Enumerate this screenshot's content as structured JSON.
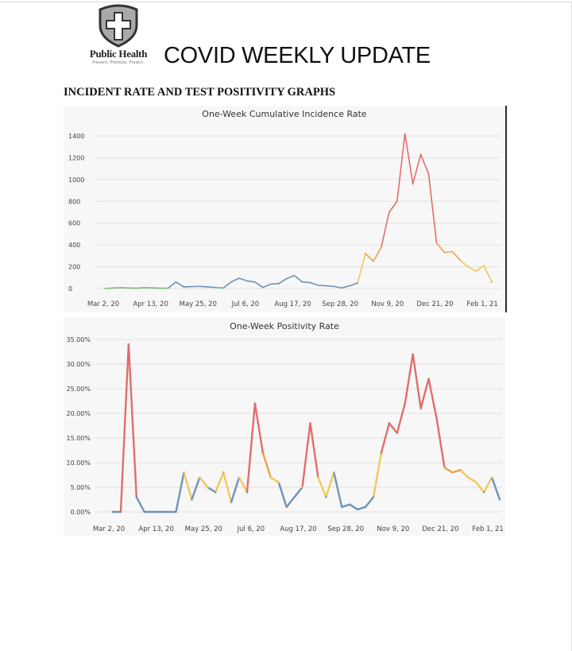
{
  "header": {
    "logo_text": "Public Health",
    "logo_tagline": "Prevent. Promote. Protect.",
    "title": "COVID WEEKLY UPDATE"
  },
  "section_heading": "INCIDENT RATE AND TEST POSITIVITY GRAPHS",
  "colors": {
    "green": "#7fb77e",
    "blue": "#6f93b8",
    "yellow": "#f2c85b",
    "orange": "#f0a145",
    "red": "#e26d6d"
  },
  "chart_data": [
    {
      "type": "line",
      "title": "One-Week Cumulative Incidence Rate",
      "xlabel": "",
      "ylabel": "",
      "ylim": [
        0,
        1400
      ],
      "yticks": [
        "0",
        "200",
        "400",
        "600",
        "800",
        "1000",
        "1200",
        "1400"
      ],
      "xticks": [
        "Mar 2, 20",
        "Apr 13, 20",
        "May 25, 20",
        "Jul 6, 20",
        "Aug 17, 20",
        "Sep 28, 20",
        "Nov 9, 20",
        "Dec 21, 20",
        "Feb 1, 21"
      ],
      "grid": true,
      "x": [
        "2020-03-02",
        "2020-03-09",
        "2020-03-16",
        "2020-03-23",
        "2020-03-30",
        "2020-04-06",
        "2020-04-13",
        "2020-04-20",
        "2020-04-27",
        "2020-05-04",
        "2020-05-11",
        "2020-05-18",
        "2020-05-25",
        "2020-06-01",
        "2020-06-08",
        "2020-06-15",
        "2020-06-22",
        "2020-06-29",
        "2020-07-06",
        "2020-07-13",
        "2020-07-20",
        "2020-07-27",
        "2020-08-03",
        "2020-08-10",
        "2020-08-17",
        "2020-08-24",
        "2020-08-31",
        "2020-09-07",
        "2020-09-14",
        "2020-09-21",
        "2020-09-28",
        "2020-10-05",
        "2020-10-12",
        "2020-10-19",
        "2020-10-26",
        "2020-11-02",
        "2020-11-09",
        "2020-11-16",
        "2020-11-23",
        "2020-11-30",
        "2020-12-07",
        "2020-12-14",
        "2020-12-21",
        "2020-12-28",
        "2021-01-04",
        "2021-01-11",
        "2021-01-18",
        "2021-01-25",
        "2021-02-01",
        "2021-02-08"
      ],
      "values": [
        0,
        5,
        8,
        5,
        3,
        8,
        6,
        3,
        3,
        60,
        15,
        18,
        20,
        15,
        10,
        5,
        60,
        95,
        70,
        60,
        10,
        40,
        45,
        90,
        120,
        60,
        55,
        30,
        25,
        20,
        5,
        25,
        50,
        320,
        250,
        380,
        700,
        800,
        1420,
        960,
        1230,
        1050,
        420,
        330,
        340,
        260,
        200,
        160,
        210,
        60
      ]
    },
    {
      "type": "line",
      "title": "One-Week Positivity Rate",
      "xlabel": "",
      "ylabel": "",
      "ylim": [
        0,
        35
      ],
      "yticks": [
        "0.00%",
        "5.00%",
        "10.00%",
        "15.00%",
        "20.00%",
        "25.00%",
        "30.00%",
        "35.00%"
      ],
      "xticks": [
        "Mar 2, 20",
        "Apr 13, 20",
        "May 25, 20",
        "Jul 6, 20",
        "Aug 17, 20",
        "Sep 28, 20",
        "Nov 9, 20",
        "Dec 21, 20",
        "Feb 1, 21"
      ],
      "grid": true,
      "x": [
        "2020-03-02",
        "2020-03-09",
        "2020-03-16",
        "2020-03-23",
        "2020-03-30",
        "2020-04-06",
        "2020-04-13",
        "2020-04-20",
        "2020-04-27",
        "2020-05-04",
        "2020-05-11",
        "2020-05-18",
        "2020-05-25",
        "2020-06-01",
        "2020-06-08",
        "2020-06-15",
        "2020-06-22",
        "2020-06-29",
        "2020-07-06",
        "2020-07-13",
        "2020-07-20",
        "2020-07-27",
        "2020-08-03",
        "2020-08-10",
        "2020-08-17",
        "2020-08-24",
        "2020-08-31",
        "2020-09-07",
        "2020-09-14",
        "2020-09-21",
        "2020-09-28",
        "2020-10-05",
        "2020-10-12",
        "2020-10-19",
        "2020-10-26",
        "2020-11-02",
        "2020-11-09",
        "2020-11-16",
        "2020-11-23",
        "2020-11-30",
        "2020-12-07",
        "2020-12-14",
        "2020-12-21",
        "2020-12-28",
        "2021-01-04",
        "2021-01-11",
        "2021-01-18",
        "2021-01-25",
        "2021-02-01",
        "2021-02-08"
      ],
      "values": [
        0,
        0,
        34,
        3,
        0,
        0,
        0,
        0,
        0,
        8,
        2.5,
        7,
        5,
        4,
        8,
        2,
        7,
        4,
        22,
        12,
        7,
        6,
        1,
        3,
        5,
        18,
        7,
        3,
        8,
        1,
        1.5,
        0.5,
        1,
        3,
        12,
        18,
        16,
        22,
        32,
        21,
        27,
        19,
        9,
        8,
        8.5,
        7,
        6,
        4,
        7,
        2.5
      ]
    }
  ]
}
